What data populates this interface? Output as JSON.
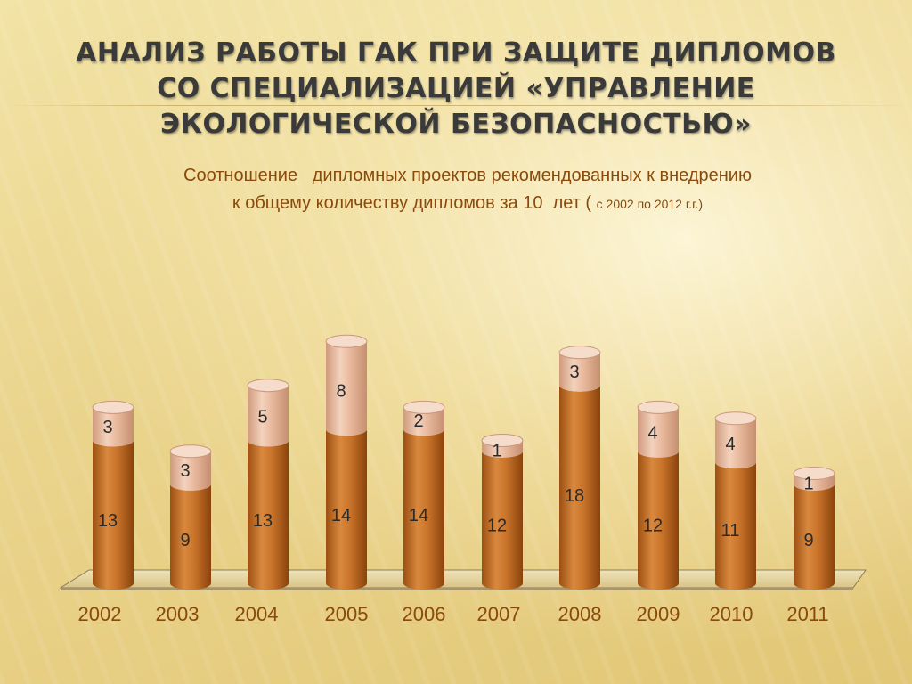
{
  "title": "Анализ работы ГАК при защите дипломов со специализацией «Управление экологической безопасностью»",
  "subtitle": {
    "line1": "Соотношение   дипломных проектов рекомендованных к внедрению",
    "line2_main": "к общему количеству дипломов за 10  лет ( ",
    "line2_small": "с 2002 по 2012 г.г.)"
  },
  "colors": {
    "lower_series": "#c8732a",
    "upper_series": "#e8b89c",
    "axis_labels": "#8a4a0c",
    "title": "#3a3a3a"
  },
  "chart_data": {
    "type": "bar",
    "stacked": true,
    "shape": "cylinder",
    "categories": [
      "2002",
      "2003",
      "2004",
      "2005",
      "2006",
      "2007",
      "2008",
      "2009",
      "2010",
      "2011"
    ],
    "series": [
      {
        "values": [
          13,
          9,
          13,
          14,
          14,
          12,
          18,
          12,
          11,
          9
        ]
      },
      {
        "values": [
          3,
          3,
          5,
          8,
          2,
          1,
          3,
          4,
          4,
          1
        ]
      }
    ],
    "ylim": [
      0,
      25
    ],
    "grid": false,
    "legend": "none",
    "data_labels": true
  }
}
